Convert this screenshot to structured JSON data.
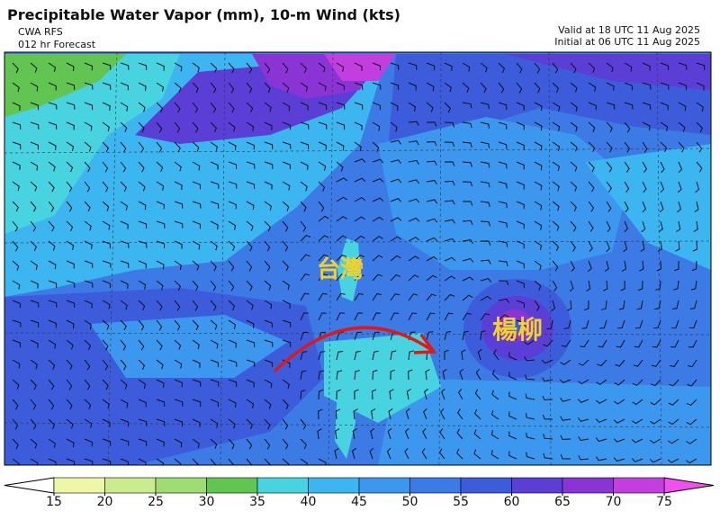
{
  "header": {
    "title": "Precipitable Water Vapor (mm), 10-m Wind (kts)",
    "model": "CWA RFS",
    "forecast": "012 hr Forecast",
    "valid": "Valid at 18 UTC 11 Aug 2025",
    "initial": "Initial at 06 UTC 11 Aug 2025"
  },
  "map": {
    "labels": [
      "台灣",
      "楊柳"
    ]
  },
  "colorbar": {
    "ticks": [
      15,
      20,
      25,
      30,
      35,
      40,
      45,
      50,
      55,
      60,
      65,
      70,
      75
    ],
    "colors": [
      "#eef7a8",
      "#c9ec8e",
      "#9fdc76",
      "#62c552",
      "#48d3e0",
      "#3cb6f0",
      "#3c98ee",
      "#3c7ae6",
      "#3c5cdc",
      "#5a3ed6",
      "#8a34d6",
      "#c23ede"
    ],
    "under_color": "#ffffff",
    "over_color": "#f050f0"
  }
}
